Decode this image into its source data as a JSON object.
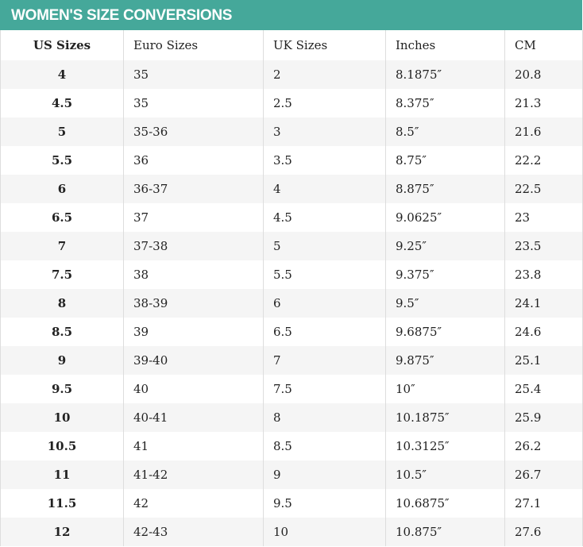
{
  "header": {
    "title": "WOMEN'S SIZE CONVERSIONS"
  },
  "table": {
    "columns": [
      "US Sizes",
      "Euro Sizes",
      "UK Sizes",
      "Inches",
      "CM"
    ],
    "rows": [
      [
        "4",
        "35",
        "2",
        "8.1875″",
        "20.8"
      ],
      [
        "4.5",
        "35",
        "2.5",
        "8.375″",
        "21.3"
      ],
      [
        "5",
        "35-36",
        "3",
        "8.5″",
        "21.6"
      ],
      [
        "5.5",
        "36",
        "3.5",
        "8.75″",
        "22.2"
      ],
      [
        "6",
        "36-37",
        "4",
        "8.875″",
        "22.5"
      ],
      [
        "6.5",
        "37",
        "4.5",
        "9.0625″",
        "23"
      ],
      [
        "7",
        "37-38",
        "5",
        "9.25″",
        "23.5"
      ],
      [
        "7.5",
        "38",
        "5.5",
        "9.375″",
        "23.8"
      ],
      [
        "8",
        "38-39",
        "6",
        "9.5″",
        "24.1"
      ],
      [
        "8.5",
        "39",
        "6.5",
        "9.6875″",
        "24.6"
      ],
      [
        "9",
        "39-40",
        "7",
        "9.875″",
        "25.1"
      ],
      [
        "9.5",
        "40",
        "7.5",
        "10″",
        "25.4"
      ],
      [
        "10",
        "40-41",
        "8",
        "10.1875″",
        "25.9"
      ],
      [
        "10.5",
        "41",
        "8.5",
        "10.3125″",
        "26.2"
      ],
      [
        "11",
        "41-42",
        "9",
        "10.5″",
        "26.7"
      ],
      [
        "11.5",
        "42",
        "9.5",
        "10.6875″",
        "27.1"
      ],
      [
        "12",
        "42-43",
        "10",
        "10.875″",
        "27.6"
      ]
    ]
  }
}
